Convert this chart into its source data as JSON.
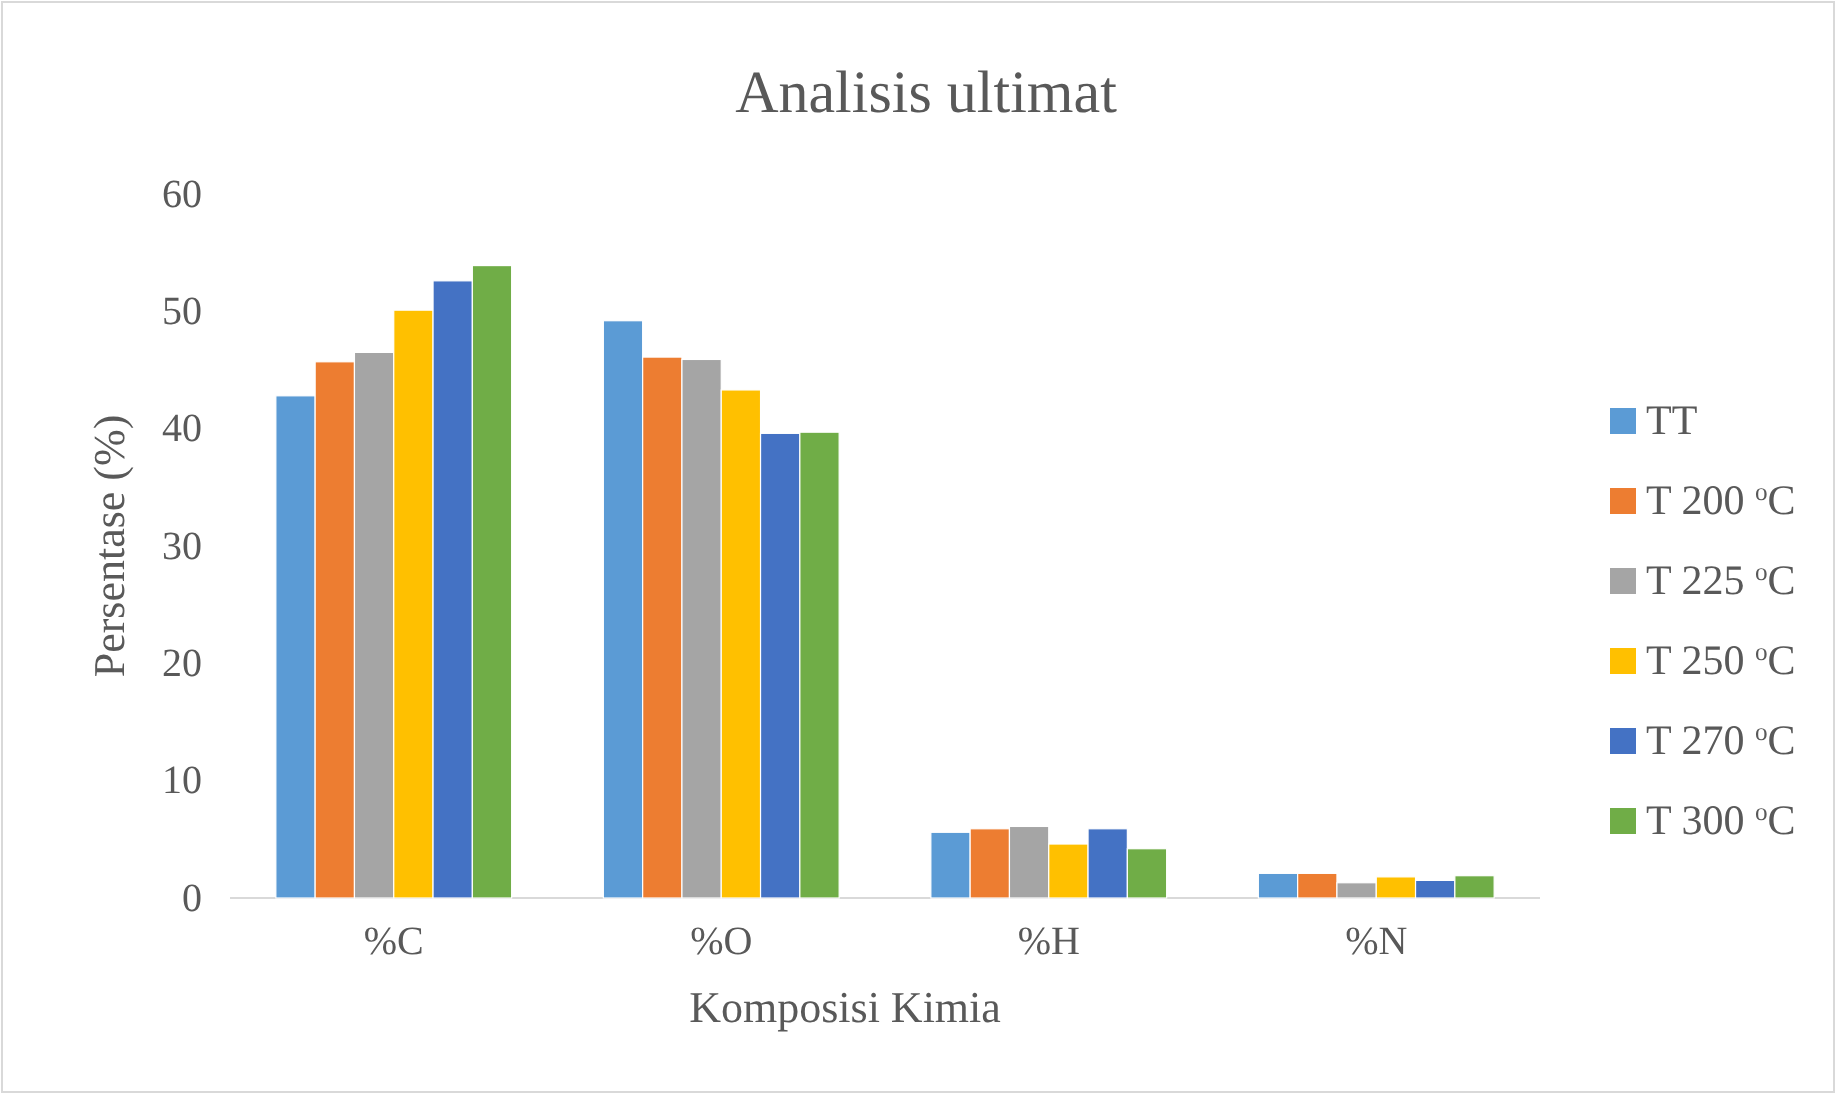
{
  "chart_data": {
    "type": "bar",
    "title": "Analisis ultimat",
    "xlabel": "Komposisi Kimia",
    "ylabel": "Persentase (%)",
    "categories": [
      "%C",
      "%O",
      "%H",
      "%N"
    ],
    "series": [
      {
        "name": "TT",
        "color": "#5b9bd5",
        "values": [
          42.8,
          49.2,
          5.6,
          2.1
        ]
      },
      {
        "name": "T 200 $^{o}$C",
        "color": "#ed7d31",
        "values": [
          45.7,
          46.1,
          5.9,
          2.1
        ]
      },
      {
        "name": "T 225 $^{o}$C",
        "color": "#a5a5a5",
        "values": [
          46.5,
          45.9,
          6.1,
          1.3
        ]
      },
      {
        "name": "T 250 $^{o}$C",
        "color": "#ffc000",
        "values": [
          50.1,
          43.3,
          4.6,
          1.8
        ]
      },
      {
        "name": "T 270 $^{o}$C",
        "color": "#4472c4",
        "values": [
          52.6,
          39.6,
          5.9,
          1.5
        ]
      },
      {
        "name": "T 300 $^{o}$C",
        "color": "#70ad47",
        "values": [
          53.9,
          39.7,
          4.2,
          1.9
        ]
      }
    ],
    "ylim": [
      0,
      60
    ],
    "yticks": [
      0,
      10,
      20,
      30,
      40,
      50,
      60
    ],
    "grid": false,
    "legend": "right"
  }
}
